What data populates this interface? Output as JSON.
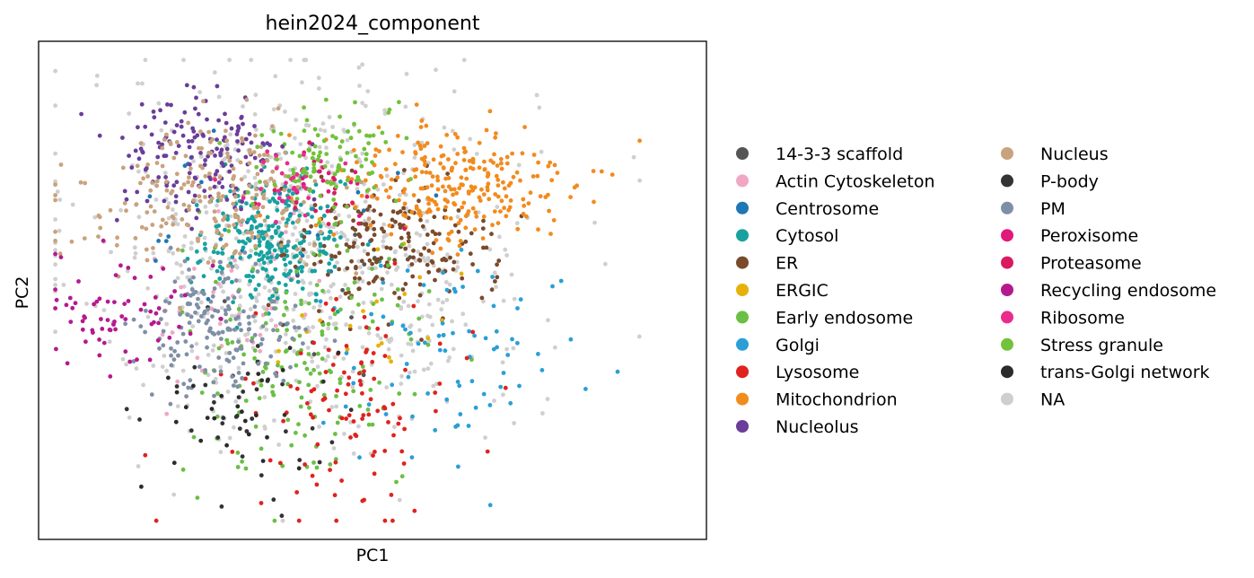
{
  "chart_data": {
    "type": "scatter",
    "title": "hein2024_component",
    "xlabel": "PC1",
    "ylabel": "PC2",
    "xlim": [
      -4.0,
      6.0
    ],
    "ylim": [
      -4.0,
      4.0
    ],
    "ticks": "hidden",
    "legend_position": "right, two columns",
    "categories": [
      {
        "name": "14-3-3 scaffold",
        "color": "#555555",
        "n": 12,
        "cx": 0.2,
        "cy": -0.6,
        "sx": 0.9,
        "sy": 0.9
      },
      {
        "name": "Actin Cytoskeleton",
        "color": "#f1a7c3",
        "n": 45,
        "cx": -1.0,
        "cy": 0.0,
        "sx": 0.7,
        "sy": 0.8
      },
      {
        "name": "Centrosome",
        "color": "#1f77b4",
        "n": 30,
        "cx": -0.6,
        "cy": 1.3,
        "sx": 0.9,
        "sy": 0.8
      },
      {
        "name": "Cytosol",
        "color": "#17a2a0",
        "n": 260,
        "cx": -0.5,
        "cy": 0.8,
        "sx": 0.55,
        "sy": 0.5
      },
      {
        "name": "ER",
        "color": "#7a4a2b",
        "n": 190,
        "cx": 1.3,
        "cy": 0.7,
        "sx": 0.75,
        "sy": 0.55
      },
      {
        "name": "ERGIC",
        "color": "#e6b10a",
        "n": 22,
        "cx": 1.0,
        "cy": -0.2,
        "sx": 0.7,
        "sy": 0.6
      },
      {
        "name": "Early endosome",
        "color": "#6abf45",
        "n": 170,
        "cx": 0.0,
        "cy": -1.1,
        "sx": 0.95,
        "sy": 1.1
      },
      {
        "name": "Golgi",
        "color": "#2a9fd6",
        "n": 80,
        "cx": 2.2,
        "cy": -1.0,
        "sx": 1.0,
        "sy": 0.8
      },
      {
        "name": "Lysosome",
        "color": "#e0221f",
        "n": 110,
        "cx": 0.7,
        "cy": -1.9,
        "sx": 0.75,
        "sy": 0.85
      },
      {
        "name": "Mitochondrion",
        "color": "#f28b1e",
        "n": 260,
        "cx": 2.2,
        "cy": 1.7,
        "sx": 0.9,
        "sy": 0.5
      },
      {
        "name": "Nucleolus",
        "color": "#6a3d9a",
        "n": 160,
        "cx": -1.6,
        "cy": 2.1,
        "sx": 0.65,
        "sy": 0.55
      },
      {
        "name": "Nucleus",
        "color": "#c9a27e",
        "n": 230,
        "cx": -1.4,
        "cy": 1.5,
        "sx": 1.0,
        "sy": 0.55
      },
      {
        "name": "P-body",
        "color": "#333333",
        "n": 40,
        "cx": -0.7,
        "cy": -2.0,
        "sx": 0.8,
        "sy": 0.8
      },
      {
        "name": "PM",
        "color": "#7f8fa6",
        "n": 170,
        "cx": -1.3,
        "cy": -0.6,
        "sx": 0.55,
        "sy": 0.5
      },
      {
        "name": "Peroxisome",
        "color": "#e0197a",
        "n": 15,
        "cx": 0.2,
        "cy": 1.7,
        "sx": 0.4,
        "sy": 0.3
      },
      {
        "name": "Proteasome",
        "color": "#d81b60",
        "n": 20,
        "cx": 0.3,
        "cy": 1.6,
        "sx": 0.5,
        "sy": 0.4
      },
      {
        "name": "Recycling endosome",
        "color": "#b5198f",
        "n": 70,
        "cx": -2.7,
        "cy": -0.3,
        "sx": 0.55,
        "sy": 0.45
      },
      {
        "name": "Ribosome",
        "color": "#ea2b8c",
        "n": 35,
        "cx": -0.2,
        "cy": 1.75,
        "sx": 0.35,
        "sy": 0.3
      },
      {
        "name": "Stress granule",
        "color": "#72c23a",
        "n": 100,
        "cx": 0.3,
        "cy": 2.1,
        "sx": 0.5,
        "sy": 0.45
      },
      {
        "name": "trans-Golgi network",
        "color": "#2b2b2b",
        "n": 25,
        "cx": -1.2,
        "cy": -1.8,
        "sx": 0.9,
        "sy": 0.7
      },
      {
        "name": "NA",
        "color": "#cfcfcf",
        "n": 650,
        "cx": 0.0,
        "cy": 0.6,
        "sx": 1.7,
        "sy": 1.5
      }
    ]
  }
}
